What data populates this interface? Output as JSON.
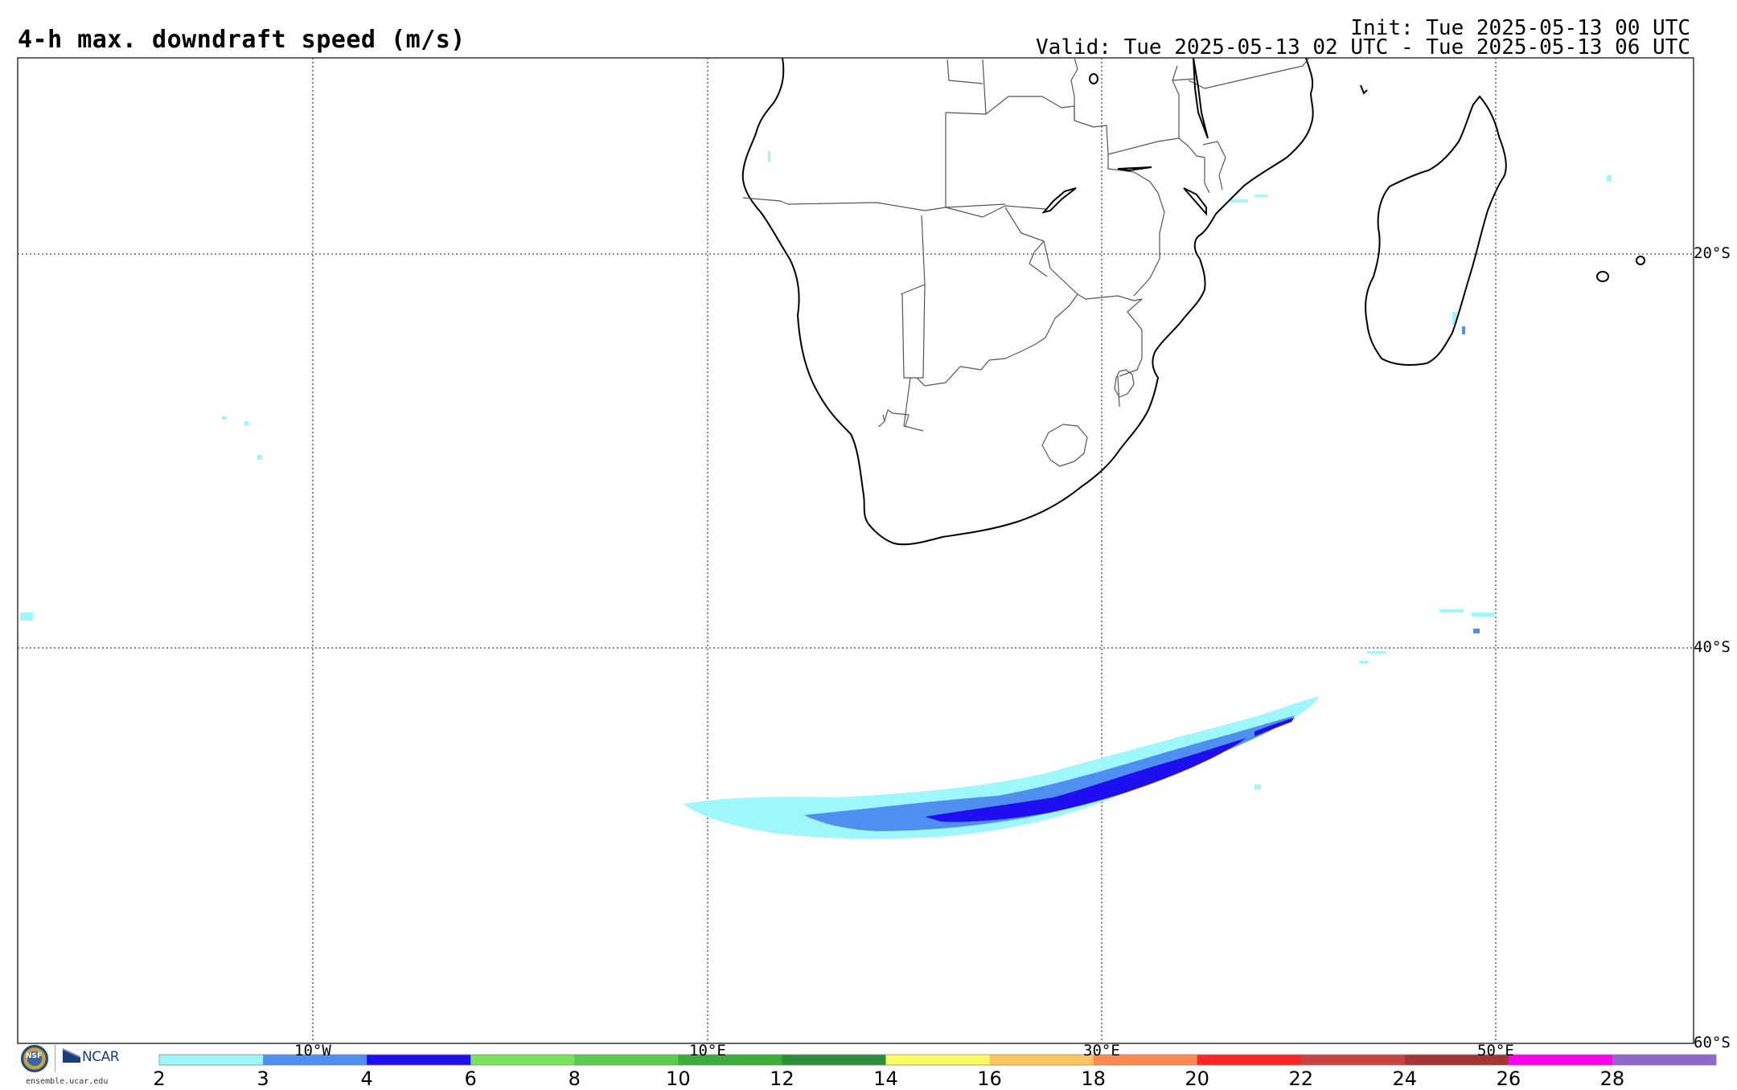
{
  "header": {
    "title": "4-h max. downdraft speed (m/s)",
    "init": "Init: Tue 2025-05-13 00 UTC",
    "valid": "Valid: Tue 2025-05-13 02 UTC - Tue 2025-05-13 06 UTC"
  },
  "map": {
    "lat_labels": [
      "20°S",
      "40°S",
      "60°S"
    ],
    "lon_labels": [
      "10°W",
      "10°E",
      "30°E",
      "50°E"
    ],
    "gridlines": "dotted",
    "land_fill": "#ffffff",
    "coastline_color": "#000000",
    "border_color": "#555555"
  },
  "colorbar": {
    "ticks": [
      "2",
      "3",
      "4",
      "6",
      "8",
      "10",
      "12",
      "14",
      "16",
      "18",
      "20",
      "22",
      "24",
      "26",
      "28"
    ],
    "colors": [
      "#9ef7fb",
      "#4f8ff0",
      "#1e0ef0",
      "#7ae25a",
      "#58cc4b",
      "#3aad3a",
      "#2a8f38",
      "#fffb62",
      "#ffc45f",
      "#ff8a4f",
      "#ff2424",
      "#c94343",
      "#a33535",
      "#ff00ee",
      "#9066cc"
    ]
  },
  "logo": {
    "seal_text": "NSF",
    "org": "NCAR",
    "url": "ensemble.ucar.edu"
  }
}
